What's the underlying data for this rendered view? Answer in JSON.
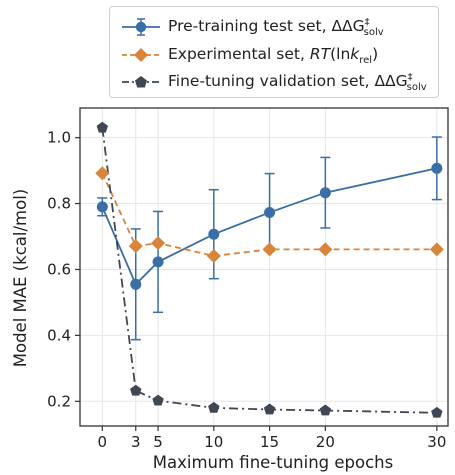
{
  "chart_data": {
    "type": "line",
    "xlabel": "Maximum fine-tuning epochs",
    "ylabel": "Model MAE (kcal/mol)",
    "xlim": [
      -2,
      31
    ],
    "ylim": [
      0.125,
      1.09
    ],
    "xticks": [
      0,
      3,
      5,
      10,
      15,
      20,
      30
    ],
    "yticks": [
      0.2,
      0.4,
      0.6,
      0.8,
      1.0
    ],
    "ytick_labels": [
      "0.2",
      "0.4",
      "0.6",
      "0.8",
      "1.0"
    ],
    "grid": true,
    "legend_position": "top",
    "series": [
      {
        "name": "Pre-training test set, ΔΔG‡solv",
        "name_plain": "Pre-training test set, ΔΔG",
        "name_sup": "‡",
        "name_sub": "solv",
        "color": "#3a6ea5",
        "marker": "circle",
        "linestyle": "solid",
        "x": [
          0,
          3,
          5,
          10,
          15,
          20,
          30
        ],
        "y": [
          0.79,
          0.555,
          0.623,
          0.707,
          0.773,
          0.833,
          0.907
        ],
        "error": [
          0.027,
          0.168,
          0.153,
          0.135,
          0.118,
          0.107,
          0.095
        ]
      },
      {
        "name": "Experimental set, RT(lnkrel)",
        "name_plain": "Experimental set, ",
        "name_italic": "RT",
        "name_mid": "(ln",
        "name_italic2": "k",
        "name_sub": "rel",
        "name_end": ")",
        "color": "#d9843b",
        "marker": "diamond",
        "linestyle": "dashed",
        "x": [
          0,
          3,
          5,
          10,
          15,
          20,
          30
        ],
        "y": [
          0.892,
          0.671,
          0.68,
          0.641,
          0.661,
          0.661,
          0.661
        ]
      },
      {
        "name": "Fine-tuning validation set, ΔΔG‡solv",
        "name_plain": "Fine-tuning validation set, ΔΔG",
        "name_sup": "‡",
        "name_sub": "solv",
        "color": "#3f4654",
        "marker": "pentagon",
        "linestyle": "dashdot",
        "x": [
          0,
          3,
          5,
          10,
          15,
          20,
          30
        ],
        "y": [
          1.03,
          0.232,
          0.202,
          0.18,
          0.175,
          0.172,
          0.165
        ]
      }
    ]
  }
}
